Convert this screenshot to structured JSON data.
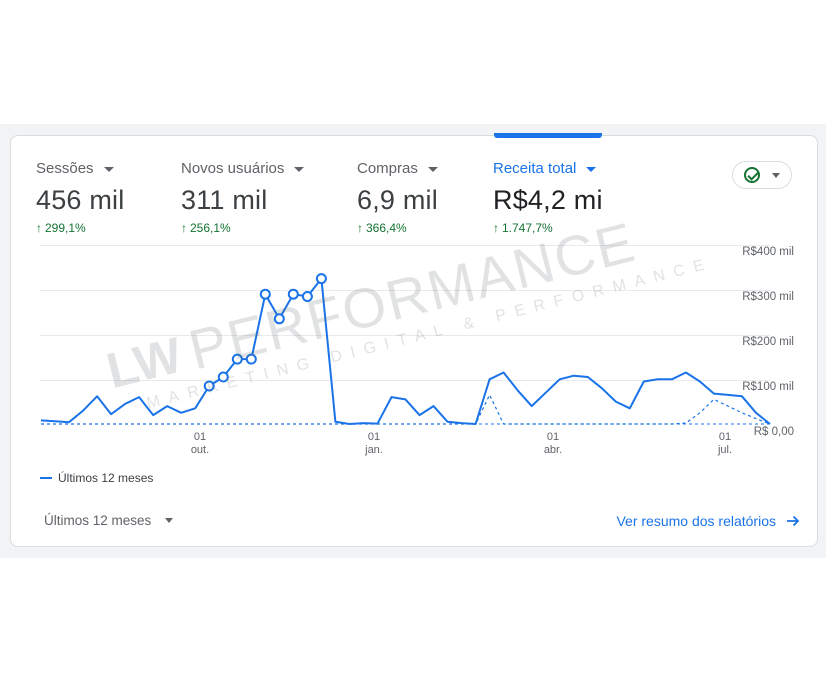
{
  "metrics": [
    {
      "label": "Sessões",
      "value": "456 mil",
      "delta": "299,1%"
    },
    {
      "label": "Novos usuários",
      "value": "311 mil",
      "delta": "256,1%"
    },
    {
      "label": "Compras",
      "value": "6,9 mil",
      "delta": "366,4%"
    },
    {
      "label": "Receita total",
      "value": "R$4,2 mi",
      "delta": "1.747,7%"
    }
  ],
  "active_metric": "Receita total",
  "legend": {
    "label": "Últimos 12 meses"
  },
  "footer": {
    "period": "Últimos 12 meses",
    "link": "Ver resumo dos relatórios"
  },
  "watermark": {
    "logo": "LW",
    "brand": "PERFORMANCE",
    "tagline": "MARKETING DIGITAL & PERFORMANCE"
  },
  "colors": {
    "accent": "#1a73e8",
    "positive": "#137333"
  },
  "icons": {
    "status": "check-circle-icon",
    "link_arrow": "arrow-right-icon"
  },
  "chart_data": {
    "type": "line",
    "y_ticks": [
      "R$400 mil",
      "R$300 mil",
      "R$200 mil",
      "R$100 mil",
      "R$ 0,00"
    ],
    "ylim": [
      0,
      400000
    ],
    "x_ticks": [
      {
        "day": "01",
        "month": "out."
      },
      {
        "day": "01",
        "month": "jan."
      },
      {
        "day": "01",
        "month": "abr."
      },
      {
        "day": "01",
        "month": "jul."
      }
    ],
    "series": [
      {
        "name": "Últimos 12 meses",
        "style": "solid",
        "values": [
          8000,
          6000,
          4000,
          30000,
          62000,
          22000,
          45000,
          60000,
          20000,
          40000,
          25000,
          35000,
          85000,
          105000,
          145000,
          145000,
          290000,
          235000,
          290000,
          285000,
          325000,
          5000,
          0,
          2000,
          1000,
          60000,
          55000,
          20000,
          40000,
          5000,
          2000,
          0,
          100000,
          115000,
          75000,
          40000,
          70000,
          100000,
          108000,
          105000,
          80000,
          50000,
          35000,
          95000,
          100000,
          100000,
          115000,
          95000,
          68000,
          65000,
          62000,
          25000,
          0
        ]
      },
      {
        "style": "dashed",
        "values": [
          0,
          0,
          0,
          0,
          0,
          0,
          0,
          0,
          0,
          0,
          0,
          0,
          0,
          0,
          0,
          0,
          0,
          0,
          0,
          0,
          0,
          0,
          0,
          0,
          0,
          0,
          0,
          0,
          0,
          0,
          0,
          0,
          65000,
          0,
          0,
          0,
          0,
          0,
          0,
          0,
          0,
          0,
          0,
          0,
          0,
          0,
          2000,
          25000,
          55000,
          40000,
          25000,
          12000,
          0
        ]
      }
    ],
    "markers": [
      12,
      13,
      14,
      15,
      16,
      17,
      18,
      19,
      20
    ]
  }
}
